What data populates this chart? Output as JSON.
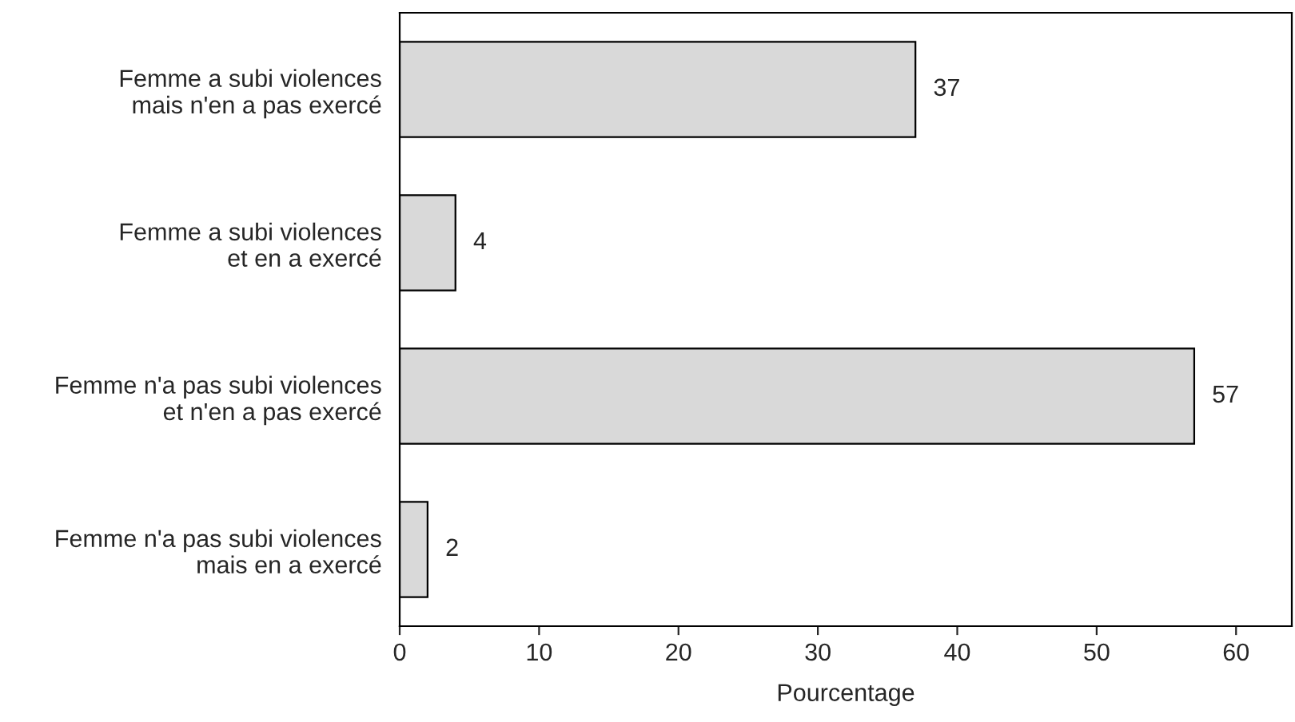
{
  "chart_data": {
    "type": "bar",
    "orientation": "horizontal",
    "categories": [
      "Femme a subi violences\nmais n'en a pas exercé",
      "Femme a subi violences\net en a exercé",
      "Femme n'a pas subi violences\net n'en a pas exercé",
      "Femme n'a pas subi violences\nmais en a exercé"
    ],
    "values": [
      37,
      4,
      57,
      2
    ],
    "color": "#d9d9d9",
    "xlabel": "Pourcentage",
    "xlim": [
      0,
      64
    ],
    "xticks": [
      0,
      10,
      20,
      30,
      40,
      50,
      60
    ],
    "data_labels": true,
    "grid": false,
    "legend": false
  }
}
